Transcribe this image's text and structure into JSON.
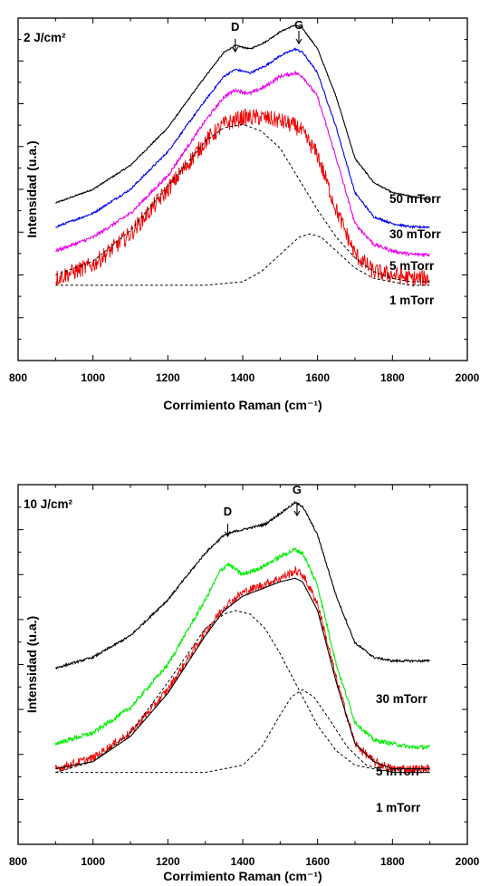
{
  "chart_data": [
    {
      "type": "line",
      "title": "2 J/cm²",
      "xlabel": "Corrimiento Raman  (cm⁻¹)",
      "ylabel": "Intensidad (u.a.)",
      "xlim": [
        800,
        2000
      ],
      "ylim": [
        0,
        1
      ],
      "xticks": [
        "800",
        "1000",
        "1200",
        "1400",
        "1600",
        "1800",
        "2000"
      ],
      "annotations": [
        {
          "text": "D",
          "x": 1380,
          "arrow": true
        },
        {
          "text": "G",
          "x": 1550,
          "arrow": true
        }
      ],
      "series": [
        {
          "name": "50 mTorr",
          "color": "#000000",
          "noise": 0.002,
          "x": [
            900,
            1000,
            1100,
            1200,
            1300,
            1350,
            1380,
            1420,
            1460,
            1500,
            1540,
            1560,
            1600,
            1650,
            1700,
            1750,
            1800,
            1850,
            1900
          ],
          "y": [
            0.46,
            0.5,
            0.57,
            0.68,
            0.83,
            0.9,
            0.92,
            0.91,
            0.93,
            0.96,
            0.98,
            0.97,
            0.91,
            0.77,
            0.59,
            0.52,
            0.49,
            0.48,
            0.47
          ]
        },
        {
          "name": "30 mTorr",
          "color": "#0000ee",
          "noise": 0.003,
          "x": [
            900,
            1000,
            1100,
            1200,
            1300,
            1350,
            1380,
            1420,
            1460,
            1500,
            1540,
            1560,
            1600,
            1650,
            1700,
            1750,
            1800,
            1850,
            1900
          ],
          "y": [
            0.39,
            0.43,
            0.5,
            0.61,
            0.76,
            0.83,
            0.85,
            0.84,
            0.86,
            0.89,
            0.91,
            0.9,
            0.84,
            0.68,
            0.49,
            0.42,
            0.4,
            0.39,
            0.39
          ]
        },
        {
          "name": "5 mTorr",
          "color": "#ee00ee",
          "noise": 0.005,
          "x": [
            900,
            1000,
            1100,
            1200,
            1300,
            1350,
            1380,
            1420,
            1460,
            1500,
            1540,
            1560,
            1600,
            1650,
            1700,
            1750,
            1800,
            1850,
            1900
          ],
          "y": [
            0.32,
            0.36,
            0.43,
            0.54,
            0.7,
            0.77,
            0.79,
            0.78,
            0.8,
            0.83,
            0.84,
            0.83,
            0.77,
            0.59,
            0.4,
            0.34,
            0.32,
            0.31,
            0.31
          ]
        },
        {
          "name": "1 mTorr",
          "color": "#ee0000",
          "noise": 0.025,
          "x": [
            900,
            1000,
            1100,
            1200,
            1300,
            1350,
            1400,
            1450,
            1500,
            1550,
            1600,
            1650,
            1700,
            1750,
            1800,
            1850,
            1900
          ],
          "y": [
            0.24,
            0.28,
            0.37,
            0.5,
            0.64,
            0.69,
            0.71,
            0.71,
            0.7,
            0.68,
            0.6,
            0.44,
            0.31,
            0.26,
            0.25,
            0.24,
            0.24
          ]
        },
        {
          "name": "",
          "color": "#000000",
          "dashed": true,
          "x": [
            900,
            1000,
            1100,
            1200,
            1300,
            1350,
            1400,
            1450,
            1500,
            1550,
            1600,
            1650,
            1700,
            1750,
            1800,
            1850,
            1900
          ],
          "y": [
            0.25,
            0.29,
            0.38,
            0.51,
            0.64,
            0.68,
            0.69,
            0.67,
            0.62,
            0.53,
            0.44,
            0.36,
            0.3,
            0.26,
            0.24,
            0.23,
            0.23
          ]
        },
        {
          "name": "",
          "color": "#000000",
          "dashed": true,
          "x": [
            900,
            1000,
            1100,
            1200,
            1300,
            1400,
            1450,
            1500,
            1550,
            1580,
            1610,
            1650,
            1700,
            1750,
            1800,
            1850,
            1900
          ],
          "y": [
            0.22,
            0.22,
            0.22,
            0.22,
            0.22,
            0.23,
            0.26,
            0.31,
            0.36,
            0.37,
            0.36,
            0.32,
            0.27,
            0.24,
            0.23,
            0.22,
            0.22
          ]
        }
      ]
    },
    {
      "type": "line",
      "title": "10 J/cm²",
      "xlabel": "Corrimiento Raman (cm⁻¹)",
      "ylabel": "Intensidad (u.a.)",
      "xlim": [
        800,
        2000
      ],
      "ylim": [
        0,
        1
      ],
      "xticks": [
        "800",
        "1000",
        "1200",
        "1400",
        "1600",
        "1800",
        "2000"
      ],
      "annotations": [
        {
          "text": "D",
          "x": 1360,
          "arrow": true
        },
        {
          "text": "G",
          "x": 1545,
          "arrow": true
        }
      ],
      "series": [
        {
          "name": "30 mTorr",
          "color": "#000000",
          "noise": 0.003,
          "x": [
            900,
            1000,
            1100,
            1200,
            1300,
            1350,
            1380,
            1420,
            1460,
            1500,
            1540,
            1560,
            1600,
            1650,
            1700,
            1750,
            1800,
            1850,
            1900
          ],
          "y": [
            0.49,
            0.52,
            0.58,
            0.68,
            0.81,
            0.86,
            0.87,
            0.88,
            0.89,
            0.92,
            0.95,
            0.94,
            0.86,
            0.69,
            0.56,
            0.52,
            0.51,
            0.51,
            0.51
          ]
        },
        {
          "name": "5 mTorr",
          "color": "#00ee00",
          "noise": 0.006,
          "x": [
            900,
            1000,
            1100,
            1200,
            1300,
            1340,
            1360,
            1400,
            1450,
            1500,
            1540,
            1560,
            1600,
            1650,
            1700,
            1750,
            1800,
            1850,
            1900
          ],
          "y": [
            0.28,
            0.31,
            0.38,
            0.5,
            0.68,
            0.76,
            0.78,
            0.75,
            0.77,
            0.8,
            0.82,
            0.81,
            0.72,
            0.5,
            0.34,
            0.29,
            0.28,
            0.27,
            0.27
          ]
        },
        {
          "name": "1 mTorr",
          "color": "#ee0000",
          "noise": 0.012,
          "x": [
            900,
            1000,
            1100,
            1200,
            1300,
            1350,
            1400,
            1450,
            1500,
            1540,
            1560,
            1600,
            1650,
            1700,
            1750,
            1800,
            1850,
            1900
          ],
          "y": [
            0.21,
            0.24,
            0.31,
            0.43,
            0.59,
            0.66,
            0.7,
            0.72,
            0.74,
            0.76,
            0.75,
            0.67,
            0.46,
            0.28,
            0.23,
            0.21,
            0.21,
            0.21
          ]
        },
        {
          "name": "",
          "color": "#000000",
          "dashed": false,
          "x": [
            900,
            1000,
            1100,
            1200,
            1300,
            1350,
            1400,
            1450,
            1500,
            1540,
            1560,
            1600,
            1650,
            1700,
            1750,
            1800,
            1850,
            1900
          ],
          "y": [
            0.21,
            0.23,
            0.3,
            0.42,
            0.58,
            0.65,
            0.69,
            0.71,
            0.73,
            0.74,
            0.73,
            0.65,
            0.45,
            0.28,
            0.23,
            0.21,
            0.21,
            0.21
          ]
        },
        {
          "name": "",
          "color": "#000000",
          "dashed": true,
          "x": [
            900,
            1000,
            1100,
            1200,
            1300,
            1350,
            1380,
            1420,
            1460,
            1500,
            1550,
            1600,
            1650,
            1700,
            1750,
            1800,
            1850,
            1900
          ],
          "y": [
            0.2,
            0.23,
            0.31,
            0.45,
            0.6,
            0.64,
            0.65,
            0.64,
            0.6,
            0.53,
            0.43,
            0.33,
            0.26,
            0.22,
            0.21,
            0.2,
            0.2,
            0.2
          ]
        },
        {
          "name": "",
          "color": "#000000",
          "dashed": true,
          "x": [
            900,
            1000,
            1100,
            1200,
            1300,
            1400,
            1450,
            1500,
            1530,
            1560,
            1590,
            1630,
            1680,
            1730,
            1800,
            1850,
            1900
          ],
          "y": [
            0.2,
            0.2,
            0.2,
            0.2,
            0.2,
            0.22,
            0.27,
            0.36,
            0.41,
            0.43,
            0.41,
            0.35,
            0.27,
            0.22,
            0.2,
            0.2,
            0.2
          ]
        }
      ]
    }
  ]
}
